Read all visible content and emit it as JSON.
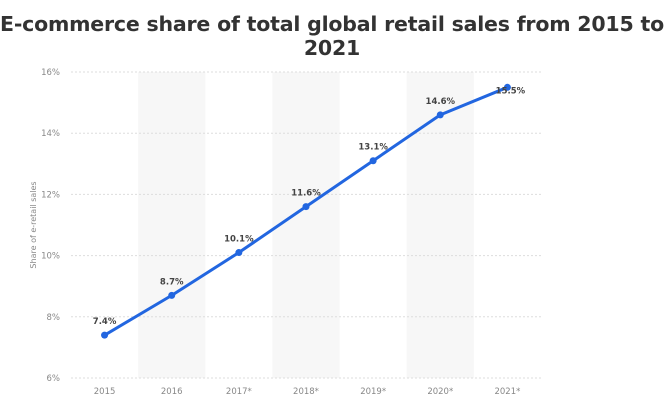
{
  "chart_data": {
    "type": "line",
    "title": "E-commerce share of total global retail sales from 2015 to 2021",
    "ylabel": "Share of e-retail sales",
    "xlabel": "",
    "categories": [
      "2015",
      "2016",
      "2017*",
      "2018*",
      "2019*",
      "2020*",
      "2021*"
    ],
    "values": [
      7.4,
      8.7,
      10.1,
      11.6,
      13.1,
      14.6,
      15.5
    ],
    "data_labels": [
      "7.4%",
      "8.7%",
      "10.1%",
      "11.6%",
      "13.1%",
      "14.6%",
      "15.5%"
    ],
    "ylim": [
      6,
      16
    ],
    "yticks": [
      6,
      8,
      10,
      12,
      14,
      16
    ],
    "ytick_labels": [
      "6%",
      "8%",
      "10%",
      "12%",
      "14%",
      "16%"
    ],
    "grid": true,
    "legend": "none",
    "line_color": "#2266e0",
    "band_color": "#f7f7f7"
  }
}
